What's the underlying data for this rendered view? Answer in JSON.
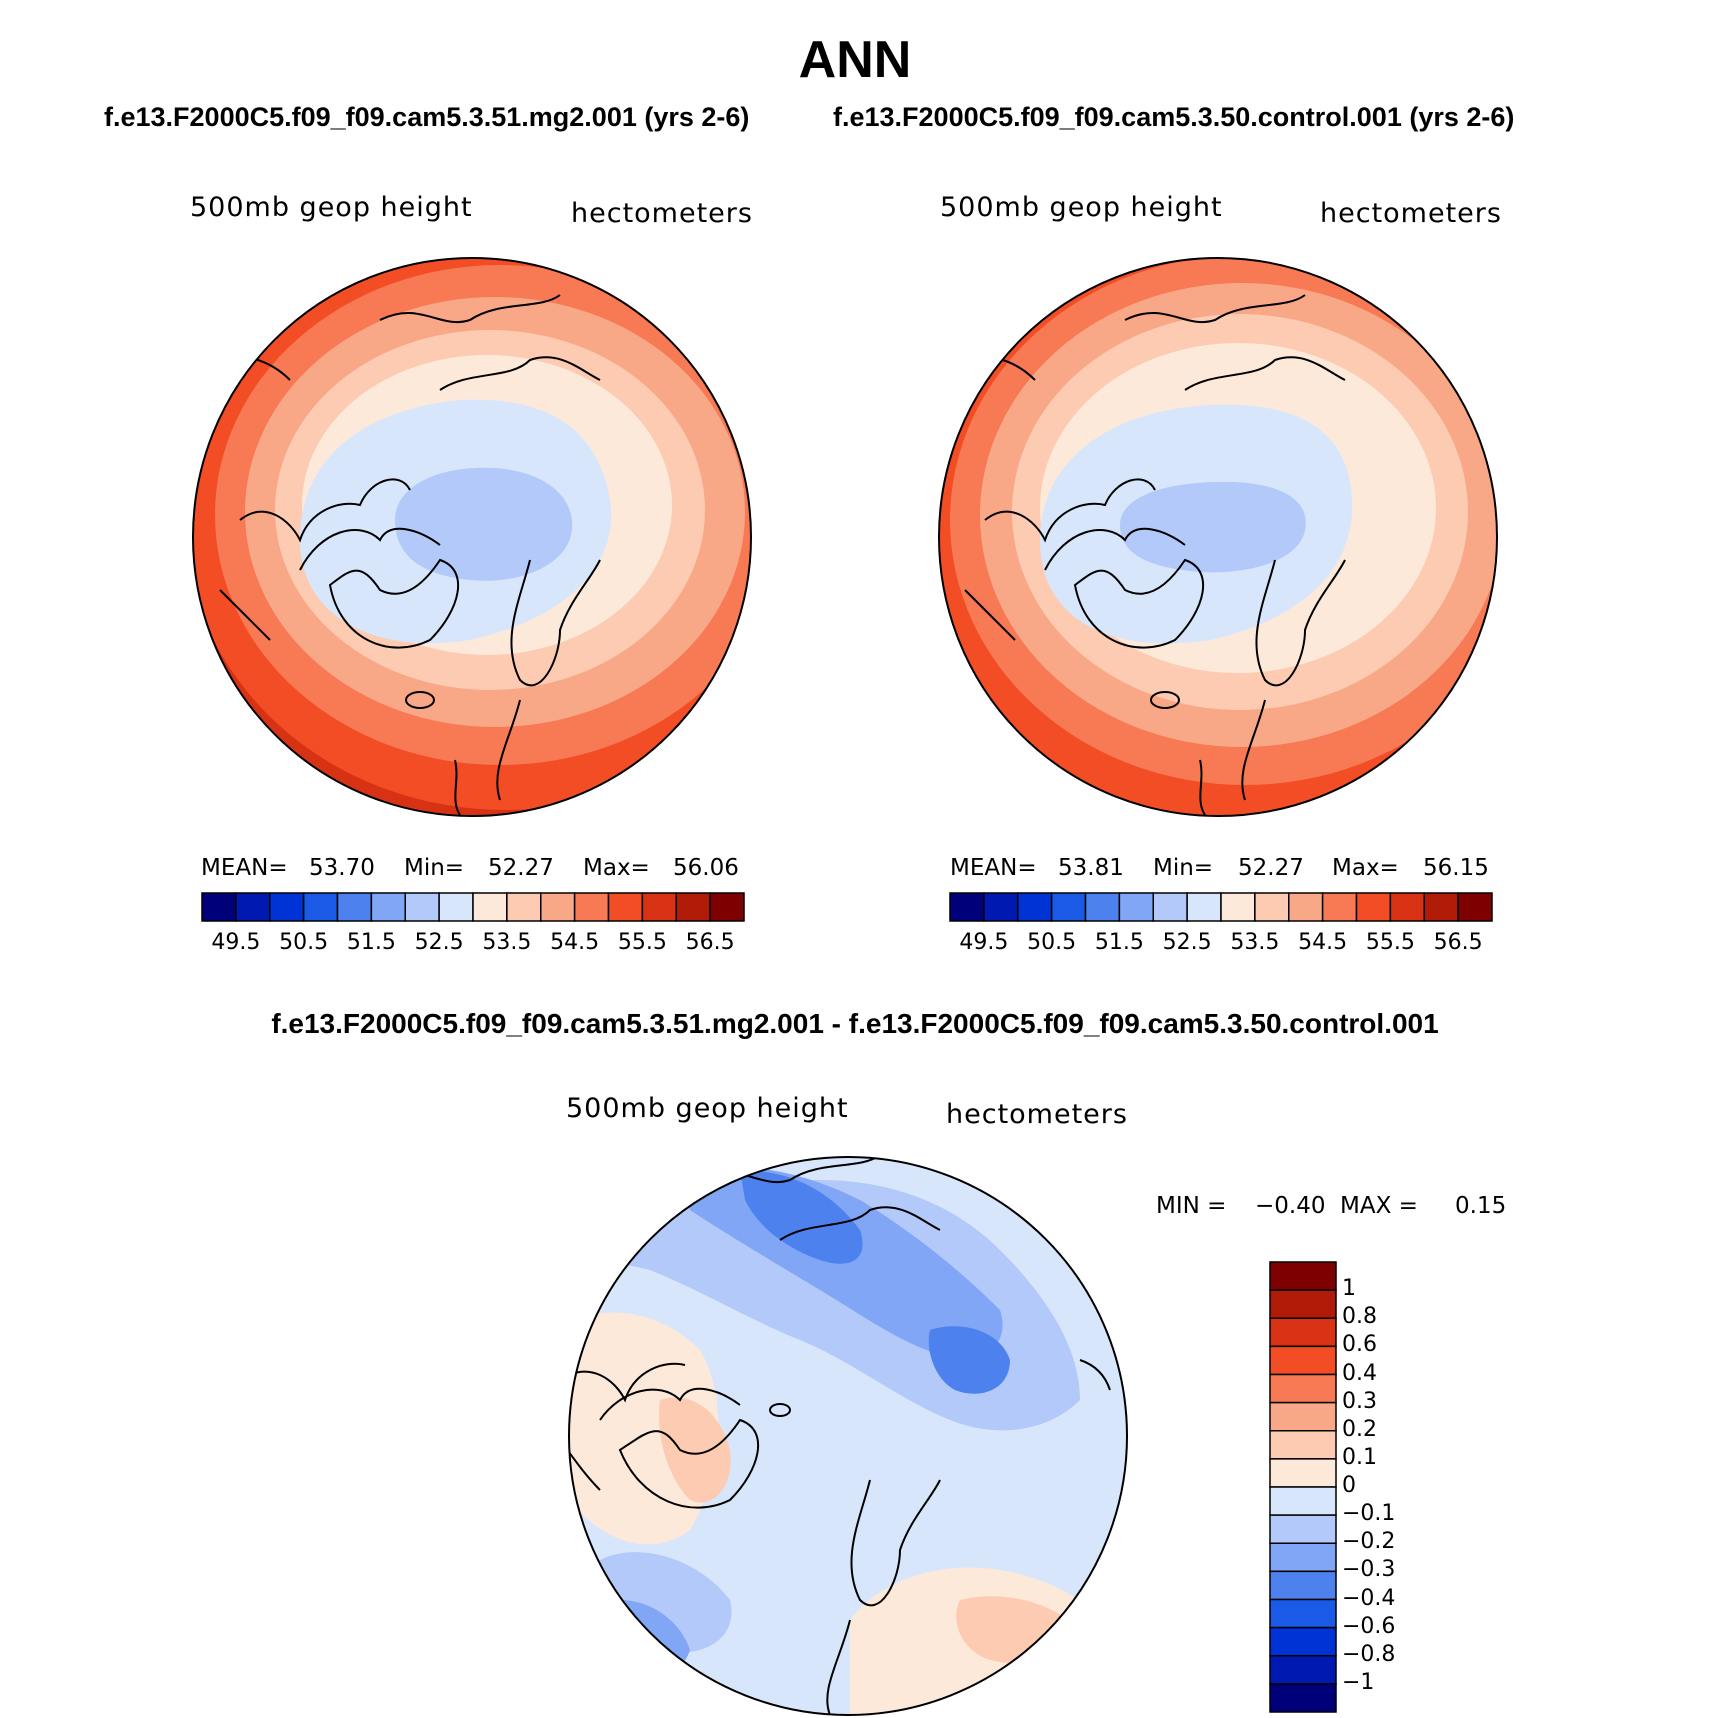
{
  "title": "ANN",
  "case_titles": {
    "left": "f.e13.F2000C5.f09_f09.cam5.3.51.mg2.001 (yrs 2-6)",
    "right": "f.e13.F2000C5.f09_f09.cam5.3.50.control.001 (yrs 2-6)"
  },
  "diff_title": "f.e13.F2000C5.f09_f09.cam5.3.51.mg2.001 - f.e13.F2000C5.f09_f09.cam5.3.50.control.001",
  "panels": [
    {
      "variable": "500mb geop height",
      "units": "hectometers",
      "stats": {
        "mean_label": "MEAN=",
        "mean": "53.70",
        "min_label": "Min=",
        "min": "52.27",
        "max_label": "Max=",
        "max": "56.06"
      }
    },
    {
      "variable": "500mb geop height",
      "units": "hectometers",
      "stats": {
        "mean_label": "MEAN=",
        "mean": "53.81",
        "min_label": "Min=",
        "min": "52.27",
        "max_label": "Max=",
        "max": "56.15"
      }
    },
    {
      "variable": "500mb geop height",
      "units": "hectometers",
      "stats": {
        "min_label": "MIN =",
        "min": "−0.40",
        "max_label": "MAX =",
        "max": "0.15"
      }
    }
  ],
  "colorbar_abs": {
    "colors": [
      "#00007a",
      "#0019b0",
      "#0033d5",
      "#1a5ae6",
      "#4d82ee",
      "#80a6f5",
      "#b3c9fa",
      "#d8e6fc",
      "#fde9da",
      "#fccbb2",
      "#f9a887",
      "#f77a54",
      "#f24d24",
      "#d63213",
      "#b01b08",
      "#7f0000"
    ],
    "labels": [
      "49.5",
      "50.5",
      "51.5",
      "52.5",
      "53.5",
      "54.5",
      "55.5",
      "56.5"
    ]
  },
  "colorbar_diff": {
    "colors": [
      "#7f0000",
      "#b01b08",
      "#d63213",
      "#f24d24",
      "#f77a54",
      "#f9a887",
      "#fccbb2",
      "#fde9da",
      "#d8e6fc",
      "#b3c9fa",
      "#80a6f5",
      "#4d82ee",
      "#1a5ae6",
      "#0033d5",
      "#0019b0",
      "#00007a"
    ],
    "labels": [
      "1",
      "0.8",
      "0.6",
      "0.4",
      "0.3",
      "0.2",
      "0.1",
      "0",
      "−0.1",
      "−0.2",
      "−0.3",
      "−0.4",
      "−0.6",
      "−0.8",
      "−1"
    ]
  }
}
